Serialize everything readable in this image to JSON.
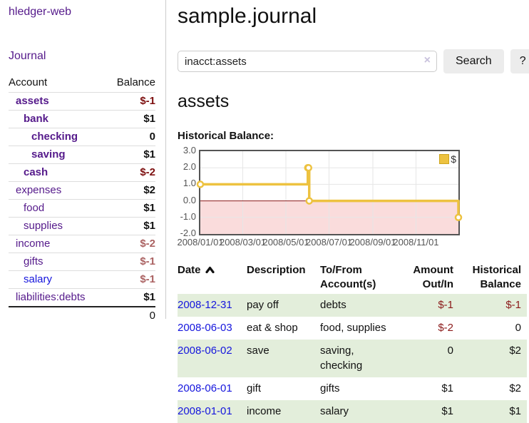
{
  "sidebar": {
    "brand": "hledger-web",
    "nav_journal": "Journal",
    "accounts_table": {
      "headers": [
        "Account",
        "Balance"
      ],
      "rows": [
        {
          "account": "assets",
          "balance": "$-1",
          "level": 1,
          "bold": true,
          "balance_style": "negative-strong"
        },
        {
          "account": "bank",
          "balance": "$1",
          "level": 2,
          "bold": true,
          "balance_style": "normal"
        },
        {
          "account": "checking",
          "balance": "0",
          "level": 3,
          "bold": true,
          "balance_style": "normal"
        },
        {
          "account": "saving",
          "balance": "$1",
          "level": 3,
          "bold": true,
          "balance_style": "normal"
        },
        {
          "account": "cash",
          "balance": "$-2",
          "level": 2,
          "bold": true,
          "balance_style": "negative-strong"
        },
        {
          "account": "expenses",
          "balance": "$2",
          "level": 1,
          "bold": false,
          "balance_style": "normal"
        },
        {
          "account": "food",
          "balance": "$1",
          "level": 2,
          "bold": false,
          "balance_style": "normal"
        },
        {
          "account": "supplies",
          "balance": "$1",
          "level": 2,
          "bold": false,
          "balance_style": "normal"
        },
        {
          "account": "income",
          "balance": "$-2",
          "level": 1,
          "bold": false,
          "balance_style": "negative-muted"
        },
        {
          "account": "gifts",
          "balance": "$-1",
          "level": 2,
          "bold": false,
          "balance_style": "negative-muted"
        },
        {
          "account": "salary",
          "balance": "$-1",
          "level": 2,
          "bold": false,
          "balance_style": "negative-muted",
          "link_style": "blue"
        },
        {
          "account": "liabilities:debts",
          "balance": "$1",
          "level": 1,
          "bold": false,
          "balance_style": "normal"
        }
      ],
      "total": "0"
    }
  },
  "header": {
    "title": "sample.journal"
  },
  "search": {
    "value": "inacct:assets",
    "clear_icon": "×",
    "button_label": "Search",
    "help_label": "?"
  },
  "account_page": {
    "title": "assets",
    "chart_label": "Historical Balance:"
  },
  "chart_data": {
    "type": "line",
    "step": true,
    "title": "Historical Balance:",
    "series": [
      {
        "name": "$",
        "color": "#edc240",
        "points": [
          [
            "2008-01-01",
            1
          ],
          [
            "2008-06-01",
            2
          ],
          [
            "2008-06-02",
            2
          ],
          [
            "2008-06-03",
            0
          ],
          [
            "2008-12-31",
            -1
          ]
        ]
      }
    ],
    "xlim": [
      "2008-01-01",
      "2008-12-31"
    ],
    "ylim": [
      -2,
      3
    ],
    "x_ticks": [
      "2008/01/01",
      "2008/03/01",
      "2008/05/01",
      "2008/07/01",
      "2008/09/01",
      "2008/11/01"
    ],
    "y_ticks": [
      "3.0",
      "2.0",
      "1.0",
      "0.0",
      "-1.0",
      "-2.0"
    ],
    "grid": true,
    "legend_position": "top-right",
    "grid_color": "#e6e6e6",
    "border_color": "#545454",
    "negative_region_color": "#fadcdc",
    "zero_line_color": "#8b1a1a"
  },
  "register_table": {
    "headers": {
      "date": "Date",
      "description": "Description",
      "accounts": "To/From Account(s)",
      "amount": "Amount Out/In",
      "balance": "Historical Balance"
    },
    "sort_icon": "caret-up",
    "rows": [
      {
        "date": "2008-12-31",
        "description": "pay off",
        "accounts": "debts",
        "amount": "$-1",
        "balance": "$-1"
      },
      {
        "date": "2008-06-03",
        "description": "eat & shop",
        "accounts": "food, supplies",
        "amount": "$-2",
        "balance": "0"
      },
      {
        "date": "2008-06-02",
        "description": "save",
        "accounts": "saving, checking",
        "amount": "0",
        "balance": "$2"
      },
      {
        "date": "2008-06-01",
        "description": "gift",
        "accounts": "gifts",
        "amount": "$1",
        "balance": "$2"
      },
      {
        "date": "2008-01-01",
        "description": "income",
        "accounts": "salary",
        "amount": "$1",
        "balance": "$1"
      }
    ]
  }
}
